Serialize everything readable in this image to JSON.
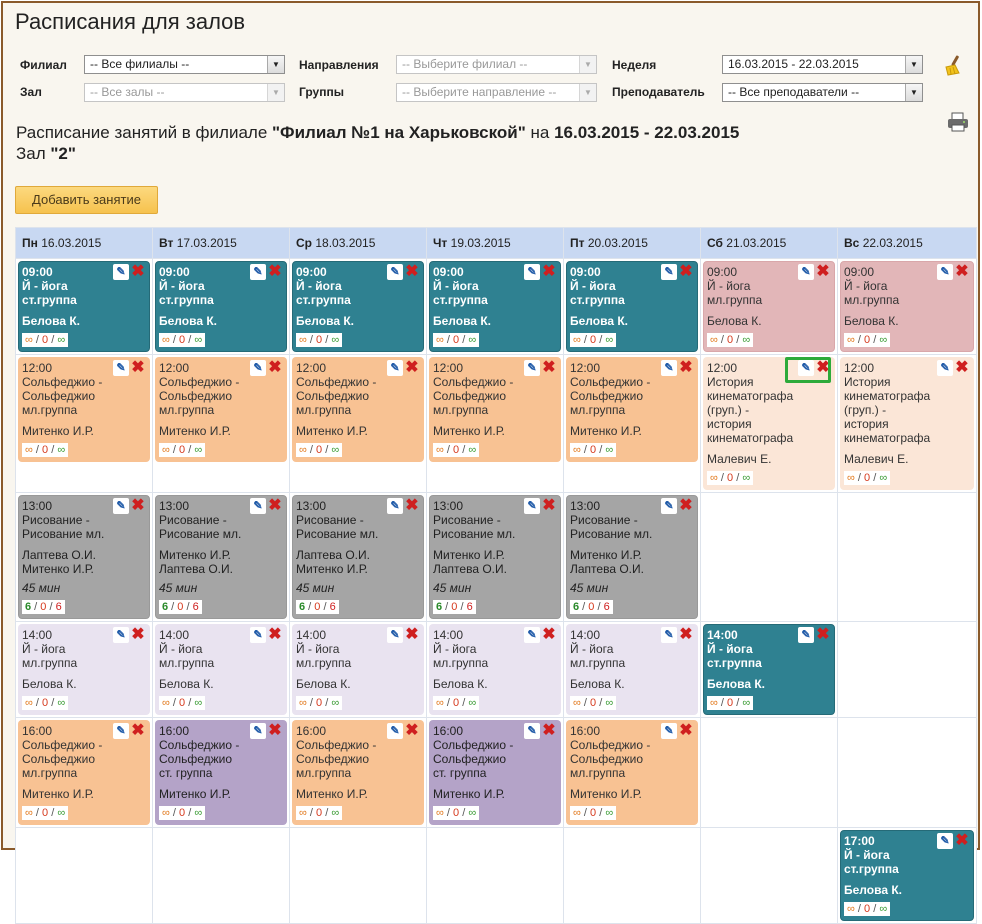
{
  "page": {
    "title": "Расписания для залов"
  },
  "filters": {
    "branch": {
      "label": "Филиал",
      "value": "-- Все филиалы --"
    },
    "hall": {
      "label": "Зал",
      "value": "-- Все залы --"
    },
    "direction": {
      "label": "Направления",
      "value": "-- Выберите филиал --"
    },
    "groups": {
      "label": "Группы",
      "value": "-- Выберите направление --"
    },
    "week": {
      "label": "Неделя",
      "value": "16.03.2015 - 22.03.2015"
    },
    "teacher": {
      "label": "Преподаватель",
      "value": "-- Все преподаватели --"
    }
  },
  "icons": {
    "clear": "broom-icon",
    "print": "printer-icon"
  },
  "heading": {
    "prefix": "Расписание занятий в филиале ",
    "branch": "\"Филиал №1 на Харьковской\"",
    "mid": " на ",
    "week": "16.03.2015 - 22.03.2015",
    "hall_prefix": "Зал ",
    "hall": "\"2\""
  },
  "add_button": "Добавить занятие",
  "days": [
    {
      "dow": "Пн",
      "date": "16.03.2015"
    },
    {
      "dow": "Вт",
      "date": "17.03.2015"
    },
    {
      "dow": "Ср",
      "date": "18.03.2015"
    },
    {
      "dow": "Чт",
      "date": "19.03.2015"
    },
    {
      "dow": "Пт",
      "date": "20.03.2015"
    },
    {
      "dow": "Сб",
      "date": "21.03.2015"
    },
    {
      "dow": "Вс",
      "date": "22.03.2015"
    }
  ],
  "cap_default": {
    "a": "∞",
    "b": "0",
    "c": "∞"
  },
  "cap_full": {
    "a": "6",
    "b": "0",
    "c": "6"
  },
  "rows": [
    [
      {
        "color": "teal",
        "time": "09:00",
        "title": "Й - йога ст.группа",
        "who": [
          "Белова К."
        ]
      },
      {
        "color": "teal",
        "time": "09:00",
        "title": "Й - йога ст.группа",
        "who": [
          "Белова К."
        ]
      },
      {
        "color": "teal",
        "time": "09:00",
        "title": "Й - йога ст.группа",
        "who": [
          "Белова К."
        ]
      },
      {
        "color": "teal",
        "time": "09:00",
        "title": "Й - йога ст.группа",
        "who": [
          "Белова К."
        ]
      },
      {
        "color": "teal",
        "time": "09:00",
        "title": "Й - йога ст.группа",
        "who": [
          "Белова К."
        ]
      },
      {
        "color": "pink",
        "time": "09:00",
        "title": "Й - йога мл.группа",
        "who": [
          "Белова К."
        ]
      },
      {
        "color": "pink",
        "time": "09:00",
        "title": "Й - йога мл.группа",
        "who": [
          "Белова К."
        ]
      }
    ],
    [
      {
        "color": "orange",
        "time": "12:00",
        "title": "Сольфеджио - Сольфеджио мл.группа",
        "who": [
          "Митенко И.Р."
        ]
      },
      {
        "color": "orange",
        "time": "12:00",
        "title": "Сольфеджио - Сольфеджио мл.группа",
        "who": [
          "Митенко И.Р."
        ]
      },
      {
        "color": "orange",
        "time": "12:00",
        "title": "Сольфеджио - Сольфеджио мл.группа",
        "who": [
          "Митенко И.Р."
        ]
      },
      {
        "color": "orange",
        "time": "12:00",
        "title": "Сольфеджио - Сольфеджио мл.группа",
        "who": [
          "Митенко И.Р."
        ]
      },
      {
        "color": "orange",
        "time": "12:00",
        "title": "Сольфеджио - Сольфеджио мл.группа",
        "who": [
          "Митенко И.Р."
        ]
      },
      {
        "color": "peach",
        "time": "12:00",
        "title": "История кинематографа (груп.) - история кинематографа",
        "who": [
          "Малевич Е."
        ],
        "highlight": true
      },
      {
        "color": "peach",
        "time": "12:00",
        "title": "История кинематографа (груп.) - история кинематографа",
        "who": [
          "Малевич Е."
        ]
      }
    ],
    [
      {
        "color": "gray",
        "time": "13:00",
        "title": "Рисование - Рисование мл.",
        "who": [
          "Лаптева О.И.",
          "Митенко И.Р."
        ],
        "dur": "45 мин",
        "full": true
      },
      {
        "color": "gray",
        "time": "13:00",
        "title": "Рисование - Рисование мл.",
        "who": [
          "Митенко И.Р.",
          "Лаптева О.И."
        ],
        "dur": "45 мин",
        "full": true
      },
      {
        "color": "gray",
        "time": "13:00",
        "title": "Рисование - Рисование мл.",
        "who": [
          "Лаптева О.И.",
          "Митенко И.Р."
        ],
        "dur": "45 мин",
        "full": true
      },
      {
        "color": "gray",
        "time": "13:00",
        "title": "Рисование - Рисование мл.",
        "who": [
          "Митенко И.Р.",
          "Лаптева О.И."
        ],
        "dur": "45 мин",
        "full": true
      },
      {
        "color": "gray",
        "time": "13:00",
        "title": "Рисование - Рисование мл.",
        "who": [
          "Митенко И.Р.",
          "Лаптева О.И."
        ],
        "dur": "45 мин",
        "full": true
      },
      null,
      null
    ],
    [
      {
        "color": "lav",
        "time": "14:00",
        "title": "Й - йога мл.группа",
        "who": [
          "Белова К."
        ]
      },
      {
        "color": "lav",
        "time": "14:00",
        "title": "Й - йога мл.группа",
        "who": [
          "Белова К."
        ]
      },
      {
        "color": "lav",
        "time": "14:00",
        "title": "Й - йога мл.группа",
        "who": [
          "Белова К."
        ]
      },
      {
        "color": "lav",
        "time": "14:00",
        "title": "Й - йога мл.группа",
        "who": [
          "Белова К."
        ]
      },
      {
        "color": "lav",
        "time": "14:00",
        "title": "Й - йога мл.группа",
        "who": [
          "Белова К."
        ]
      },
      {
        "color": "teal",
        "time": "14:00",
        "title": "Й - йога ст.группа",
        "who": [
          "Белова К."
        ]
      },
      null
    ],
    [
      {
        "color": "orange",
        "time": "16:00",
        "title": "Сольфеджио - Сольфеджио мл.группа",
        "who": [
          "Митенко И.Р."
        ]
      },
      {
        "color": "purple",
        "time": "16:00",
        "title": "Сольфеджио - Сольфеджио ст. группа",
        "who": [
          "Митенко И.Р."
        ]
      },
      {
        "color": "orange",
        "time": "16:00",
        "title": "Сольфеджио - Сольфеджио мл.группа",
        "who": [
          "Митенко И.Р."
        ]
      },
      {
        "color": "purple",
        "time": "16:00",
        "title": "Сольфеджио - Сольфеджио ст. группа",
        "who": [
          "Митенко И.Р."
        ]
      },
      {
        "color": "orange",
        "time": "16:00",
        "title": "Сольфеджио - Сольфеджио мл.группа",
        "who": [
          "Митенко И.Р."
        ]
      },
      null,
      null
    ],
    [
      null,
      null,
      null,
      null,
      null,
      null,
      {
        "color": "teal",
        "time": "17:00",
        "title": "Й - йога ст.группа",
        "who": [
          "Белова К."
        ]
      }
    ]
  ]
}
